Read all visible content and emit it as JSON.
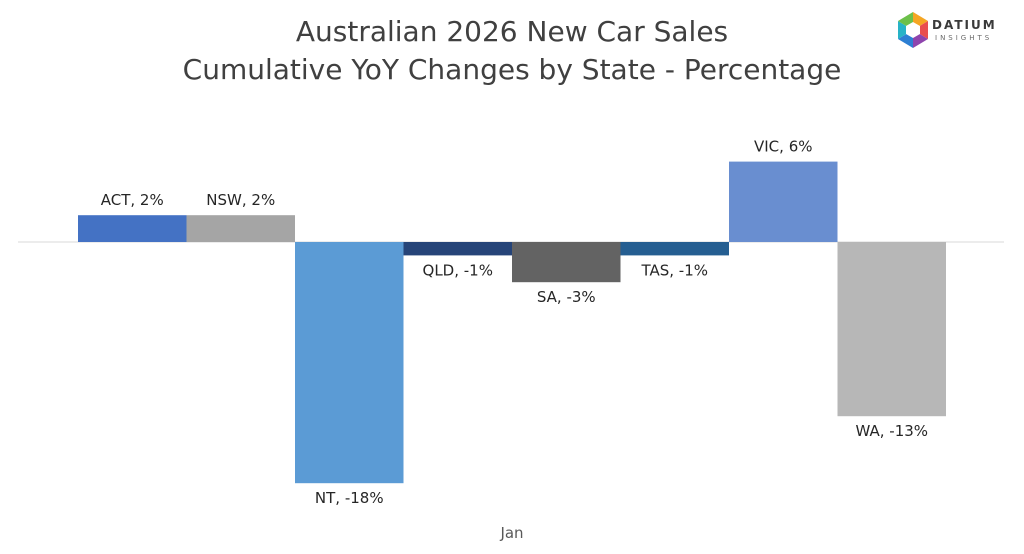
{
  "title_line1": "Australian 2026 New Car Sales",
  "title_line2": "Cumulative YoY Changes by State - Percentage",
  "logo": {
    "brand": "DATIUM",
    "sub": "INSIGHTS"
  },
  "colors": {
    "ACT": "#4472c4",
    "NSW": "#a5a5a5",
    "NT": "#5b9bd5",
    "QLD": "#264478",
    "SA": "#636363",
    "TAS": "#255e91",
    "VIC": "#698ed0",
    "WA": "#b7b7b7",
    "axis": "#d9d9d9",
    "label": "#262626"
  },
  "chart_data": {
    "type": "bar",
    "title": "Australian 2026 New Car Sales Cumulative YoY Changes by State - Percentage",
    "xlabel": "",
    "ylabel": "",
    "category_label": "Jan",
    "ylim": [
      -18,
      6
    ],
    "series": [
      {
        "name": "ACT",
        "values": [
          2
        ],
        "label": "ACT, 2%"
      },
      {
        "name": "NSW",
        "values": [
          2
        ],
        "label": "NSW, 2%"
      },
      {
        "name": "NT",
        "values": [
          -18
        ],
        "label": "NT, -18%"
      },
      {
        "name": "QLD",
        "values": [
          -1
        ],
        "label": "QLD, -1%"
      },
      {
        "name": "SA",
        "values": [
          -3
        ],
        "label": "SA, -3%"
      },
      {
        "name": "TAS",
        "values": [
          -1
        ],
        "label": "TAS, -1%"
      },
      {
        "name": "VIC",
        "values": [
          6
        ],
        "label": "VIC, 6%"
      },
      {
        "name": "WA",
        "values": [
          -13
        ],
        "label": "WA, -13%"
      }
    ]
  }
}
